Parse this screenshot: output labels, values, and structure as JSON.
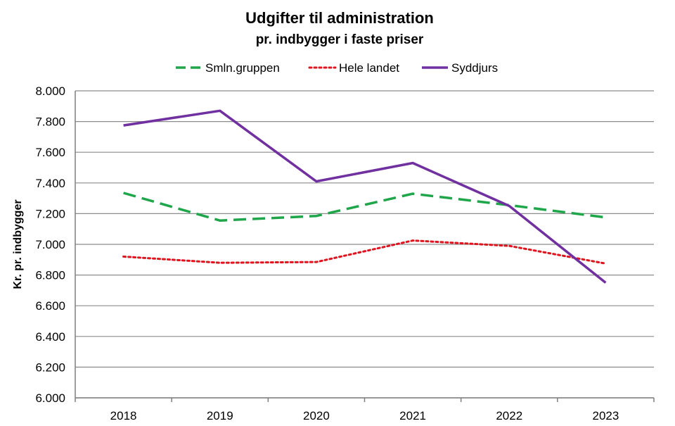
{
  "chart_data": {
    "type": "line",
    "title": "Udgifter til administration",
    "subtitle": "pr. indbygger i faste priser",
    "xlabel": "",
    "ylabel": "Kr. pr. indbygger",
    "categories": [
      "2018",
      "2019",
      "2020",
      "2021",
      "2022",
      "2023"
    ],
    "ylim": [
      6000,
      8000
    ],
    "yticks": [
      "6.000",
      "6.200",
      "6.400",
      "6.600",
      "6.800",
      "7.000",
      "7.200",
      "7.400",
      "7.600",
      "7.800",
      "8.000"
    ],
    "grid": true,
    "legend_position": "top",
    "series": [
      {
        "name": "Smln.gruppen",
        "color": "#1fa64a",
        "style": "dashed",
        "values": [
          7335,
          7155,
          7185,
          7330,
          7255,
          7175
        ]
      },
      {
        "name": "Hele landet",
        "color": "#e0141e",
        "style": "dotted",
        "values": [
          6920,
          6880,
          6885,
          7025,
          6990,
          6875
        ]
      },
      {
        "name": "Syddjurs",
        "color": "#7030a0",
        "style": "solid",
        "values": [
          7775,
          7870,
          7410,
          7530,
          7250,
          6750
        ]
      }
    ]
  }
}
